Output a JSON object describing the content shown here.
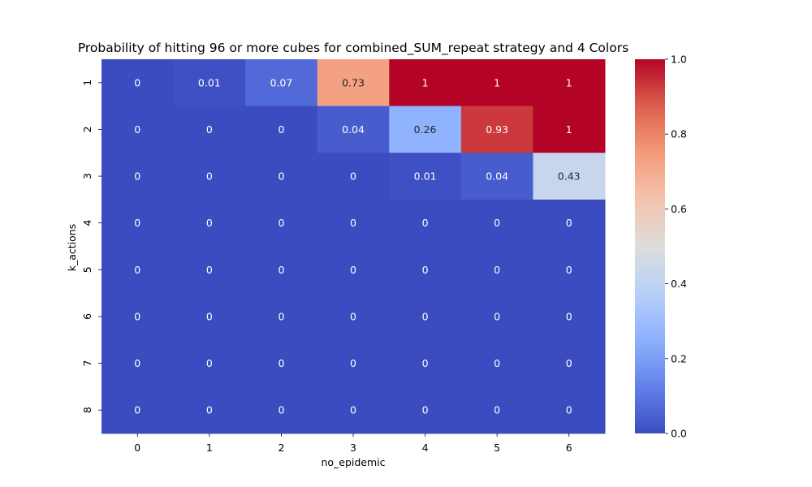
{
  "chart_data": {
    "type": "heatmap",
    "title": "Probability of hitting 96 or more cubes for combined_SUM_repeat strategy and 4 Colors",
    "xlabel": "no_epidemic",
    "ylabel": "k_actions",
    "x_categories": [
      "0",
      "1",
      "2",
      "3",
      "4",
      "5",
      "6"
    ],
    "y_categories": [
      "1",
      "2",
      "3",
      "4",
      "5",
      "6",
      "7",
      "8"
    ],
    "values": [
      [
        0,
        0.01,
        0.07,
        0.73,
        1,
        1,
        1
      ],
      [
        0,
        0,
        0,
        0.04,
        0.26,
        0.93,
        1
      ],
      [
        0,
        0,
        0,
        0,
        0.01,
        0.04,
        0.43
      ],
      [
        0,
        0,
        0,
        0,
        0,
        0,
        0
      ],
      [
        0,
        0,
        0,
        0,
        0,
        0,
        0
      ],
      [
        0,
        0,
        0,
        0,
        0,
        0,
        0
      ],
      [
        0,
        0,
        0,
        0,
        0,
        0,
        0
      ],
      [
        0,
        0,
        0,
        0,
        0,
        0,
        0
      ]
    ],
    "colormap": "coolwarm",
    "vmin": 0,
    "vmax": 1,
    "colorbar_ticks": [
      "0.0",
      "0.2",
      "0.4",
      "0.6",
      "0.8",
      "1.0"
    ],
    "colorbar_tick_values": [
      0,
      0.2,
      0.4,
      0.6,
      0.8,
      1.0
    ],
    "grid": false,
    "legend": "colorbar-right"
  }
}
